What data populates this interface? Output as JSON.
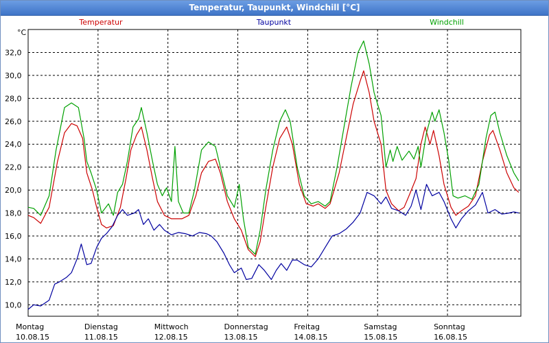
{
  "window": {
    "title": "Temperatur, Taupunkt, Windchill [°C]"
  },
  "colors": {
    "temperatur": "#cc0000",
    "taupunkt": "#00009f",
    "windchill": "#00a000",
    "grid": "#000000"
  },
  "chart_data": {
    "type": "line",
    "title": "",
    "ylabel": "°C",
    "ylim": [
      9.0,
      34.0
    ],
    "yticks": [
      "10,0",
      "12,0",
      "14,0",
      "16,0",
      "18,0",
      "20,0",
      "22,0",
      "24,0",
      "26,0",
      "28,0",
      "30,0",
      "32,0"
    ],
    "xlim": [
      0,
      7.05
    ],
    "days": [
      {
        "name": "Montag",
        "date": "10.08.15"
      },
      {
        "name": "Dienstag",
        "date": "11.08.15"
      },
      {
        "name": "Mittwoch",
        "date": "12.08.15"
      },
      {
        "name": "Donnerstag",
        "date": "13.08.15"
      },
      {
        "name": "Freitag",
        "date": "14.08.15"
      },
      {
        "name": "Samstag",
        "date": "15.08.15"
      },
      {
        "name": "Sonntag",
        "date": "16.08.15"
      }
    ],
    "legend_placement": "top",
    "grid": true,
    "series": [
      {
        "name": "Temperatur",
        "color": "#cc0000",
        "points": [
          [
            0.0,
            17.8
          ],
          [
            0.08,
            17.6
          ],
          [
            0.18,
            17.1
          ],
          [
            0.3,
            18.5
          ],
          [
            0.42,
            22.5
          ],
          [
            0.52,
            25.0
          ],
          [
            0.62,
            25.8
          ],
          [
            0.7,
            25.6
          ],
          [
            0.78,
            24.5
          ],
          [
            0.84,
            21.5
          ],
          [
            0.92,
            20.0
          ],
          [
            0.98,
            18.5
          ],
          [
            1.05,
            17.0
          ],
          [
            1.12,
            16.7
          ],
          [
            1.22,
            16.9
          ],
          [
            1.32,
            18.5
          ],
          [
            1.4,
            21.0
          ],
          [
            1.47,
            23.5
          ],
          [
            1.55,
            24.8
          ],
          [
            1.62,
            25.5
          ],
          [
            1.7,
            23.5
          ],
          [
            1.78,
            21.0
          ],
          [
            1.85,
            19.0
          ],
          [
            1.95,
            17.8
          ],
          [
            2.05,
            17.5
          ],
          [
            2.2,
            17.5
          ],
          [
            2.3,
            17.8
          ],
          [
            2.4,
            19.5
          ],
          [
            2.48,
            21.5
          ],
          [
            2.58,
            22.5
          ],
          [
            2.68,
            22.7
          ],
          [
            2.75,
            21.5
          ],
          [
            2.85,
            19.0
          ],
          [
            2.95,
            17.5
          ],
          [
            3.05,
            16.5
          ],
          [
            3.15,
            14.8
          ],
          [
            3.25,
            14.2
          ],
          [
            3.32,
            15.5
          ],
          [
            3.4,
            18.5
          ],
          [
            3.5,
            22.0
          ],
          [
            3.6,
            24.5
          ],
          [
            3.7,
            25.5
          ],
          [
            3.78,
            24.0
          ],
          [
            3.88,
            20.5
          ],
          [
            3.98,
            18.8
          ],
          [
            4.08,
            18.6
          ],
          [
            4.15,
            18.8
          ],
          [
            4.25,
            18.4
          ],
          [
            4.32,
            18.8
          ],
          [
            4.45,
            21.5
          ],
          [
            4.55,
            24.5
          ],
          [
            4.65,
            27.5
          ],
          [
            4.75,
            29.5
          ],
          [
            4.8,
            30.4
          ],
          [
            4.88,
            28.5
          ],
          [
            4.95,
            26.0
          ],
          [
            5.05,
            24.0
          ],
          [
            5.12,
            20.0
          ],
          [
            5.2,
            18.8
          ],
          [
            5.3,
            18.2
          ],
          [
            5.38,
            18.5
          ],
          [
            5.45,
            19.5
          ],
          [
            5.55,
            21.0
          ],
          [
            5.62,
            24.0
          ],
          [
            5.68,
            25.5
          ],
          [
            5.75,
            24.0
          ],
          [
            5.8,
            25.2
          ],
          [
            5.88,
            23.0
          ],
          [
            5.95,
            20.5
          ],
          [
            6.05,
            18.5
          ],
          [
            6.12,
            17.8
          ],
          [
            6.2,
            18.2
          ],
          [
            6.3,
            18.6
          ],
          [
            6.4,
            19.5
          ],
          [
            6.5,
            22.5
          ],
          [
            6.6,
            24.8
          ],
          [
            6.65,
            25.2
          ],
          [
            6.75,
            23.5
          ],
          [
            6.85,
            21.5
          ],
          [
            6.95,
            20.2
          ],
          [
            7.02,
            19.8
          ]
        ]
      },
      {
        "name": "Taupunkt",
        "color": "#00009f",
        "points": [
          [
            0.0,
            9.6
          ],
          [
            0.08,
            10.0
          ],
          [
            0.18,
            9.9
          ],
          [
            0.3,
            10.4
          ],
          [
            0.38,
            11.8
          ],
          [
            0.45,
            12.0
          ],
          [
            0.55,
            12.4
          ],
          [
            0.62,
            12.8
          ],
          [
            0.7,
            14.0
          ],
          [
            0.76,
            15.3
          ],
          [
            0.84,
            13.5
          ],
          [
            0.9,
            13.6
          ],
          [
            0.98,
            15.0
          ],
          [
            1.05,
            15.8
          ],
          [
            1.12,
            16.2
          ],
          [
            1.2,
            16.8
          ],
          [
            1.28,
            17.8
          ],
          [
            1.35,
            18.3
          ],
          [
            1.42,
            17.8
          ],
          [
            1.52,
            18.0
          ],
          [
            1.58,
            18.3
          ],
          [
            1.65,
            17.0
          ],
          [
            1.72,
            17.5
          ],
          [
            1.8,
            16.5
          ],
          [
            1.88,
            17.0
          ],
          [
            1.95,
            16.5
          ],
          [
            2.05,
            16.1
          ],
          [
            2.15,
            16.3
          ],
          [
            2.25,
            16.2
          ],
          [
            2.35,
            16.0
          ],
          [
            2.45,
            16.3
          ],
          [
            2.55,
            16.2
          ],
          [
            2.62,
            16.0
          ],
          [
            2.7,
            15.5
          ],
          [
            2.8,
            14.5
          ],
          [
            2.88,
            13.5
          ],
          [
            2.95,
            12.8
          ],
          [
            3.05,
            13.2
          ],
          [
            3.12,
            12.2
          ],
          [
            3.2,
            12.3
          ],
          [
            3.3,
            13.5
          ],
          [
            3.38,
            13.0
          ],
          [
            3.48,
            12.2
          ],
          [
            3.55,
            13.0
          ],
          [
            3.62,
            13.6
          ],
          [
            3.7,
            13.0
          ],
          [
            3.78,
            13.9
          ],
          [
            3.85,
            13.9
          ],
          [
            3.95,
            13.5
          ],
          [
            4.05,
            13.3
          ],
          [
            4.15,
            14.0
          ],
          [
            4.25,
            15.0
          ],
          [
            4.35,
            16.0
          ],
          [
            4.45,
            16.2
          ],
          [
            4.55,
            16.6
          ],
          [
            4.65,
            17.2
          ],
          [
            4.75,
            18.0
          ],
          [
            4.85,
            19.8
          ],
          [
            4.95,
            19.5
          ],
          [
            5.05,
            18.8
          ],
          [
            5.12,
            19.4
          ],
          [
            5.2,
            18.4
          ],
          [
            5.3,
            18.2
          ],
          [
            5.4,
            17.8
          ],
          [
            5.48,
            18.6
          ],
          [
            5.55,
            20.0
          ],
          [
            5.62,
            18.3
          ],
          [
            5.7,
            20.5
          ],
          [
            5.78,
            19.5
          ],
          [
            5.88,
            19.8
          ],
          [
            5.95,
            19.0
          ],
          [
            6.05,
            17.5
          ],
          [
            6.12,
            16.7
          ],
          [
            6.2,
            17.5
          ],
          [
            6.3,
            18.2
          ],
          [
            6.4,
            18.7
          ],
          [
            6.5,
            19.8
          ],
          [
            6.58,
            18.0
          ],
          [
            6.68,
            18.3
          ],
          [
            6.78,
            17.9
          ],
          [
            6.88,
            18.0
          ],
          [
            6.95,
            18.1
          ],
          [
            7.02,
            18.0
          ]
        ]
      },
      {
        "name": "Windchill",
        "color": "#00a000",
        "points": [
          [
            0.0,
            18.5
          ],
          [
            0.08,
            18.4
          ],
          [
            0.18,
            17.8
          ],
          [
            0.3,
            19.5
          ],
          [
            0.4,
            23.5
          ],
          [
            0.52,
            27.2
          ],
          [
            0.62,
            27.6
          ],
          [
            0.72,
            27.2
          ],
          [
            0.8,
            24.5
          ],
          [
            0.84,
            22.5
          ],
          [
            0.9,
            21.5
          ],
          [
            0.98,
            20.0
          ],
          [
            1.05,
            18.0
          ],
          [
            1.15,
            18.8
          ],
          [
            1.22,
            17.8
          ],
          [
            1.28,
            19.8
          ],
          [
            1.35,
            20.5
          ],
          [
            1.42,
            22.5
          ],
          [
            1.5,
            25.5
          ],
          [
            1.58,
            26.2
          ],
          [
            1.62,
            27.2
          ],
          [
            1.7,
            25.0
          ],
          [
            1.78,
            22.5
          ],
          [
            1.85,
            20.5
          ],
          [
            1.92,
            19.5
          ],
          [
            1.98,
            20.2
          ],
          [
            2.05,
            19.0
          ],
          [
            2.1,
            23.8
          ],
          [
            2.15,
            19.0
          ],
          [
            2.22,
            18.0
          ],
          [
            2.3,
            18.0
          ],
          [
            2.38,
            20.0
          ],
          [
            2.48,
            23.5
          ],
          [
            2.58,
            24.2
          ],
          [
            2.68,
            23.8
          ],
          [
            2.75,
            22.0
          ],
          [
            2.85,
            19.5
          ],
          [
            2.95,
            18.5
          ],
          [
            3.02,
            20.5
          ],
          [
            3.08,
            17.5
          ],
          [
            3.15,
            15.0
          ],
          [
            3.25,
            14.4
          ],
          [
            3.32,
            16.5
          ],
          [
            3.4,
            20.0
          ],
          [
            3.5,
            23.5
          ],
          [
            3.6,
            26.0
          ],
          [
            3.68,
            27.0
          ],
          [
            3.75,
            26.0
          ],
          [
            3.85,
            22.0
          ],
          [
            3.95,
            19.5
          ],
          [
            4.05,
            18.8
          ],
          [
            4.15,
            19.0
          ],
          [
            4.25,
            18.6
          ],
          [
            4.32,
            19.0
          ],
          [
            4.42,
            22.0
          ],
          [
            4.52,
            25.5
          ],
          [
            4.62,
            29.0
          ],
          [
            4.72,
            32.0
          ],
          [
            4.8,
            33.0
          ],
          [
            4.88,
            31.0
          ],
          [
            4.95,
            28.5
          ],
          [
            5.05,
            26.5
          ],
          [
            5.12,
            22.0
          ],
          [
            5.18,
            23.5
          ],
          [
            5.22,
            22.5
          ],
          [
            5.28,
            23.8
          ],
          [
            5.35,
            22.6
          ],
          [
            5.45,
            23.4
          ],
          [
            5.52,
            22.7
          ],
          [
            5.58,
            23.8
          ],
          [
            5.62,
            22.0
          ],
          [
            5.7,
            25.0
          ],
          [
            5.78,
            26.8
          ],
          [
            5.82,
            26.0
          ],
          [
            5.88,
            27.0
          ],
          [
            5.95,
            25.0
          ],
          [
            6.02,
            22.5
          ],
          [
            6.08,
            19.5
          ],
          [
            6.15,
            19.3
          ],
          [
            6.25,
            19.5
          ],
          [
            6.35,
            19.2
          ],
          [
            6.45,
            20.5
          ],
          [
            6.55,
            24.5
          ],
          [
            6.62,
            26.5
          ],
          [
            6.68,
            26.8
          ],
          [
            6.75,
            25.0
          ],
          [
            6.85,
            23.0
          ],
          [
            6.95,
            21.5
          ],
          [
            7.02,
            20.8
          ]
        ]
      }
    ]
  }
}
